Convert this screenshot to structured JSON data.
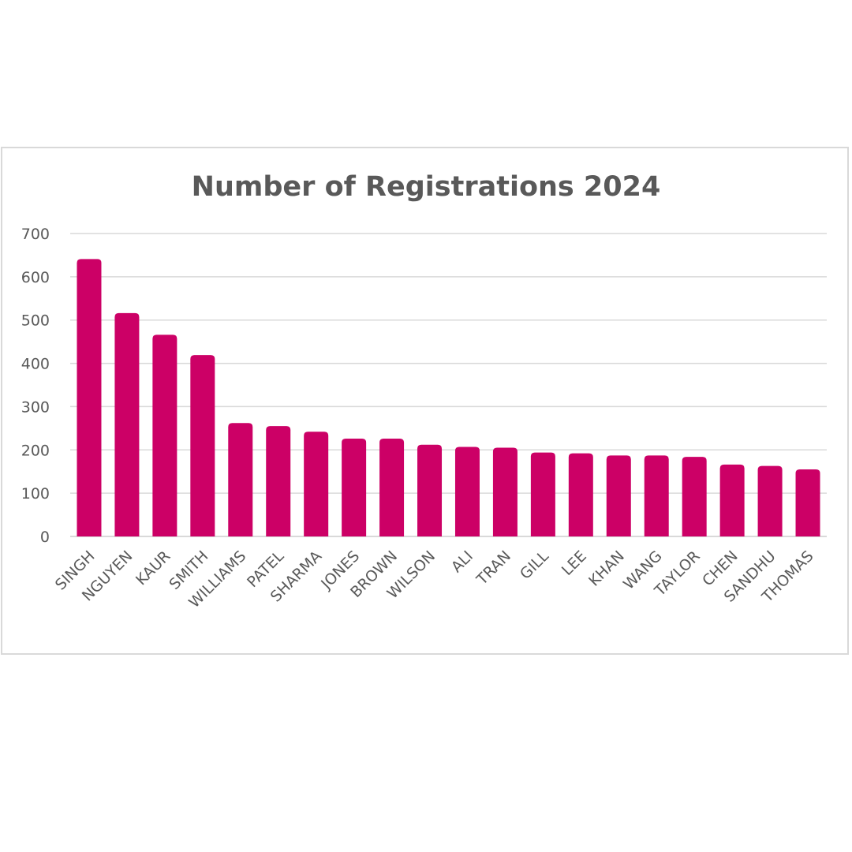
{
  "colors": {
    "bar": "#cc0066",
    "text": "#595959",
    "grid": "#d9d9d9"
  },
  "chart_data": {
    "type": "bar",
    "title": "Number of Registrations 2024",
    "xlabel": "",
    "ylabel": "",
    "ylim": [
      0,
      700
    ],
    "yticks": [
      0,
      100,
      200,
      300,
      400,
      500,
      600,
      700
    ],
    "grid": true,
    "legend": "none",
    "categories": [
      "SINGH",
      "NGUYEN",
      "KAUR",
      "SMITH",
      "WILLIAMS",
      "PATEL",
      "SHARMA",
      "JONES",
      "BROWN",
      "WILSON",
      "ALI",
      "TRAN",
      "GILL",
      "LEE",
      "KHAN",
      "WANG",
      "TAYLOR",
      "CHEN",
      "SANDHU",
      "THOMAS"
    ],
    "values": [
      641,
      516,
      466,
      419,
      262,
      255,
      242,
      226,
      226,
      212,
      207,
      205,
      194,
      192,
      187,
      187,
      184,
      166,
      163,
      155
    ]
  }
}
